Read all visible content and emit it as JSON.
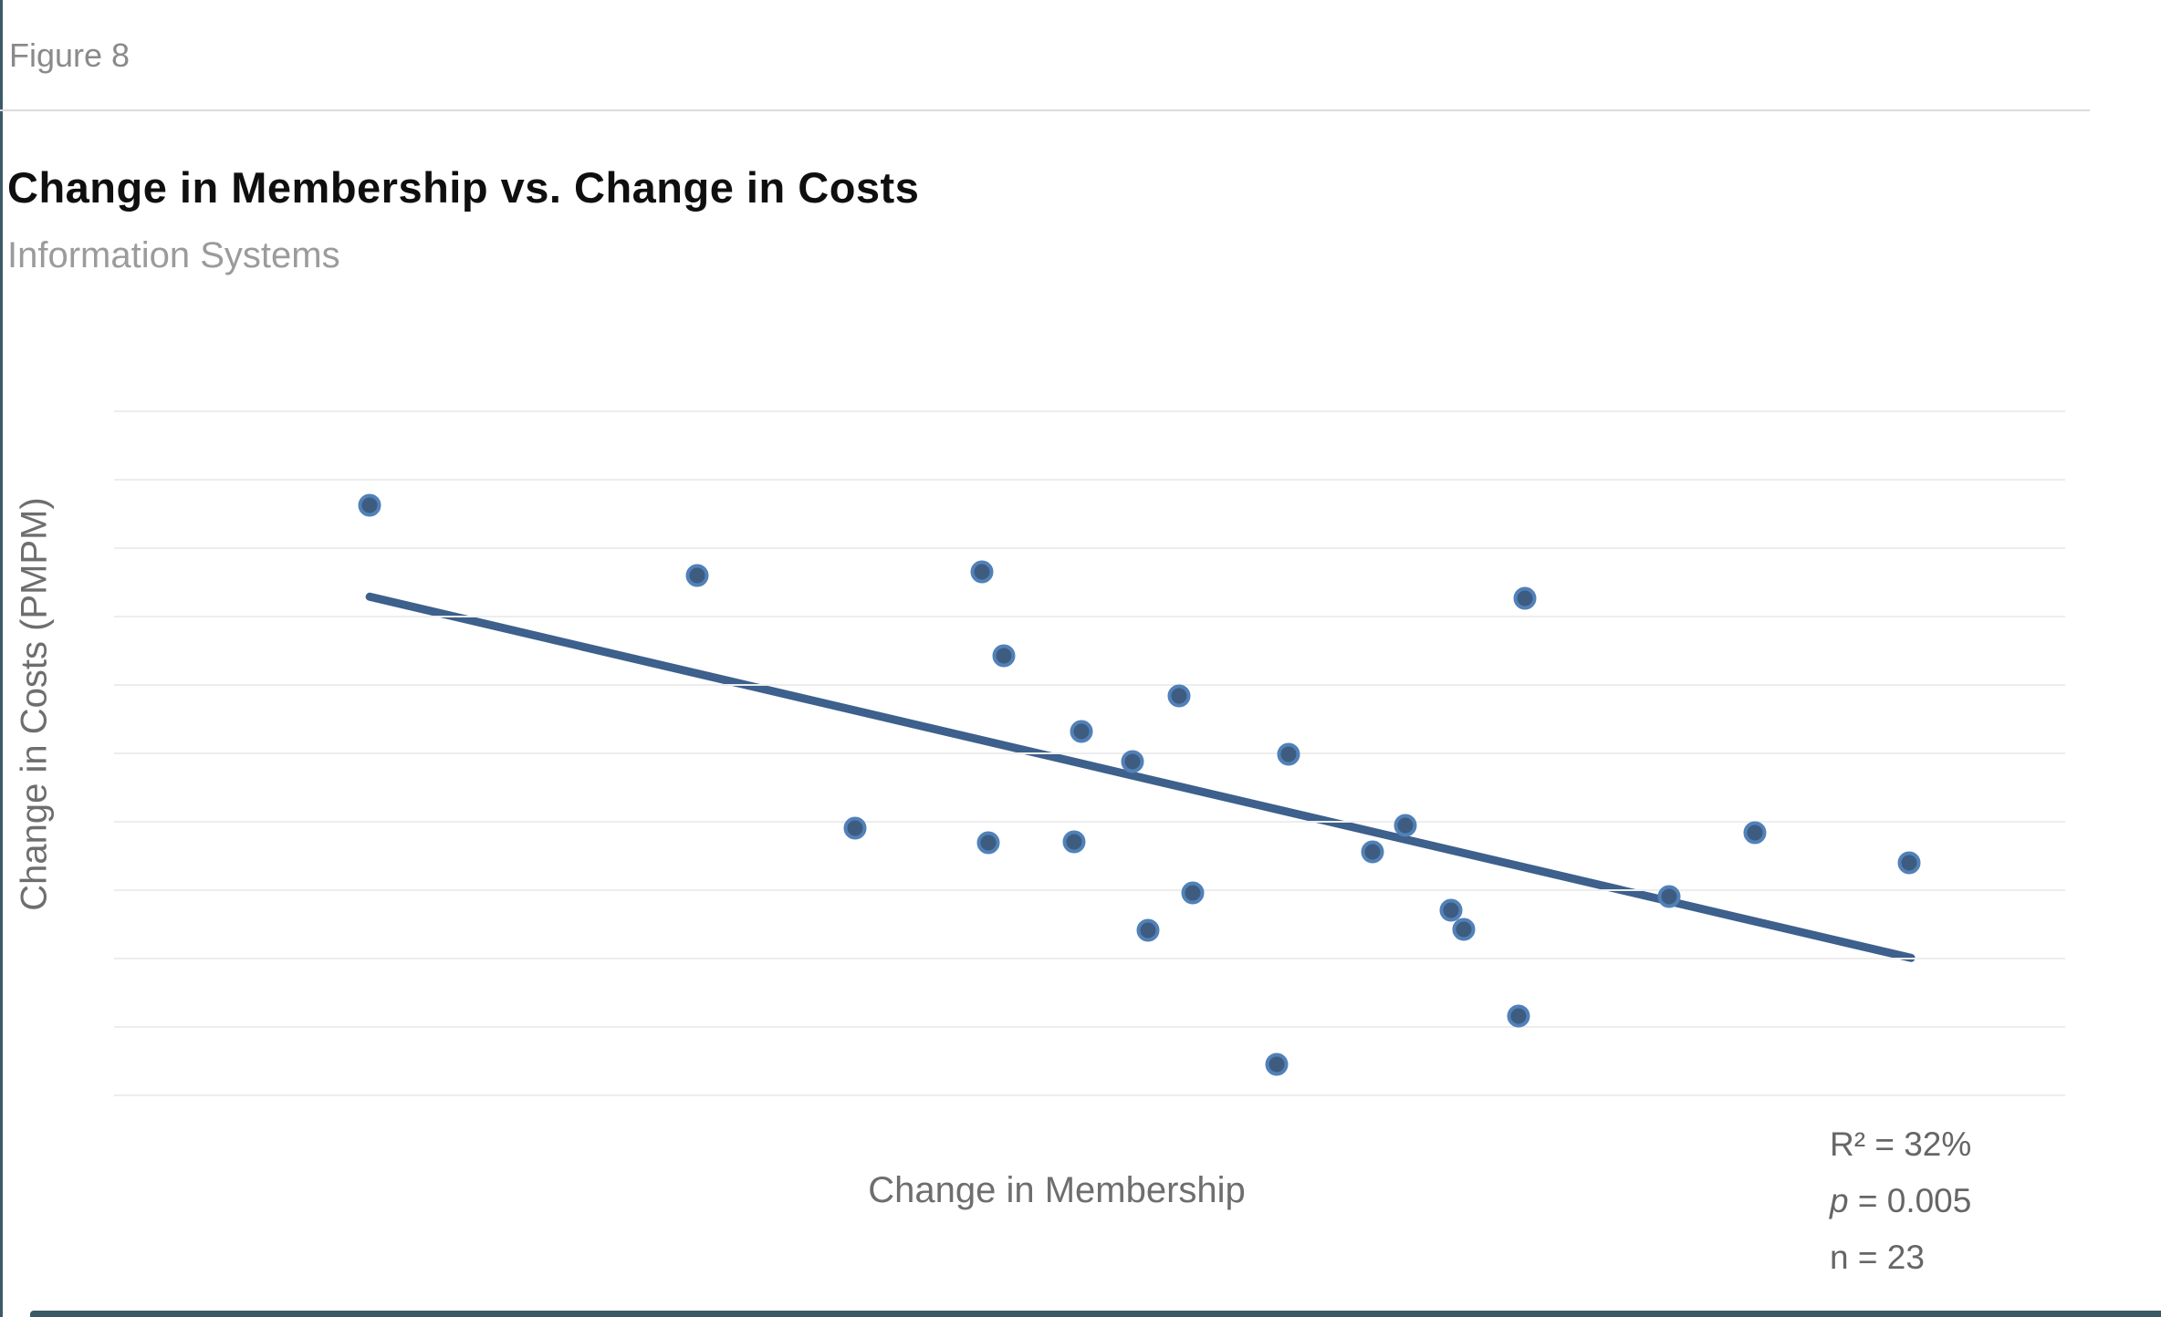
{
  "figure_label": "Figure 8",
  "header": {
    "title": "Change in Membership vs. Change in Costs",
    "subtitle": "Information Systems"
  },
  "chart_data": {
    "type": "scatter",
    "title": "Change in Membership vs. Change in Costs",
    "subtitle": "Information Systems",
    "xlabel": "Change in Membership",
    "ylabel": "Change in Costs (PMPM)",
    "axis_tick_labels": "none shown",
    "grid": "horizontal gridlines only",
    "gridline_count": 11,
    "n_points": 23,
    "points_unit": "normalized 0-1 fractions of plot area (chart shows no numeric axis scale); x from left, y from bottom",
    "points": [
      {
        "x": 0.131,
        "y": 0.863
      },
      {
        "x": 0.299,
        "y": 0.76
      },
      {
        "x": 0.445,
        "y": 0.765
      },
      {
        "x": 0.456,
        "y": 0.643
      },
      {
        "x": 0.546,
        "y": 0.584
      },
      {
        "x": 0.496,
        "y": 0.532
      },
      {
        "x": 0.522,
        "y": 0.488
      },
      {
        "x": 0.602,
        "y": 0.499
      },
      {
        "x": 0.38,
        "y": 0.391
      },
      {
        "x": 0.448,
        "y": 0.369
      },
      {
        "x": 0.492,
        "y": 0.371
      },
      {
        "x": 0.662,
        "y": 0.395
      },
      {
        "x": 0.645,
        "y": 0.356
      },
      {
        "x": 0.553,
        "y": 0.296
      },
      {
        "x": 0.53,
        "y": 0.241
      },
      {
        "x": 0.685,
        "y": 0.271
      },
      {
        "x": 0.692,
        "y": 0.243
      },
      {
        "x": 0.797,
        "y": 0.291
      },
      {
        "x": 0.841,
        "y": 0.384
      },
      {
        "x": 0.92,
        "y": 0.34
      },
      {
        "x": 0.72,
        "y": 0.116
      },
      {
        "x": 0.596,
        "y": 0.045
      },
      {
        "x": 0.723,
        "y": 0.727
      }
    ],
    "trend_line": {
      "x1": 0.131,
      "y1": 0.729,
      "x2": 0.921,
      "y2": 0.201
    },
    "stats": {
      "r_squared": "R² = 32%",
      "p_label": "p",
      "p_rest": " = 0.005",
      "n": "n = 23"
    }
  },
  "colors": {
    "accent": "#3b5a66",
    "dot_fill": "#3d5c80",
    "dot_ring": "#5181b8",
    "trend_line": "#3d608c",
    "gridline": "#ededed"
  }
}
